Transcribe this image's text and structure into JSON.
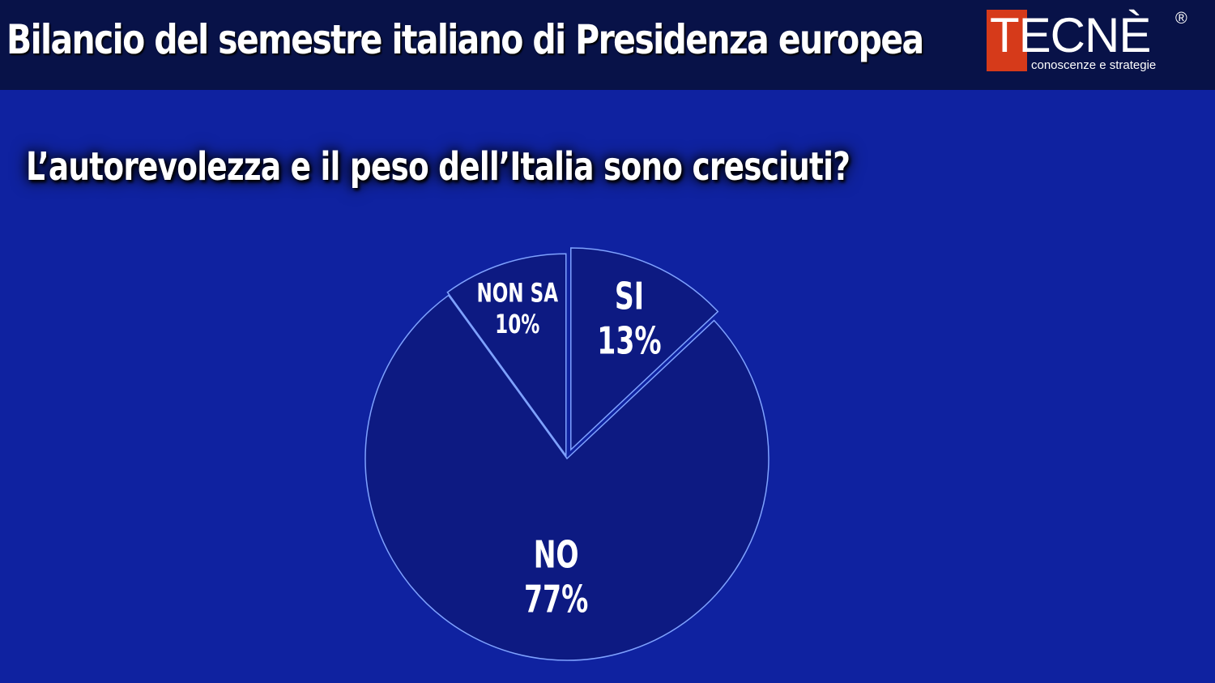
{
  "header": {
    "title": "Bilancio del semestre italiano di Presidenza europea",
    "logo": {
      "word": "TECNÈ",
      "registered": "®",
      "tagline": "conoscenze e strategie",
      "accent_color": "#d63a1a"
    }
  },
  "colors": {
    "background": "#0f22a0",
    "header": "#081248",
    "slice_fill": "#0d1a82",
    "slice_stroke": "#7fa2ff"
  },
  "chart_data": {
    "type": "pie",
    "title": "L’autorevolezza e il peso dell’Italia sono cresciuti?",
    "slices": [
      {
        "label": "SI",
        "value": 13,
        "value_label": "13%"
      },
      {
        "label": "NO",
        "value": 77,
        "value_label": "77%"
      },
      {
        "label": "NON SA",
        "value": 10,
        "value_label": "10%"
      }
    ]
  }
}
